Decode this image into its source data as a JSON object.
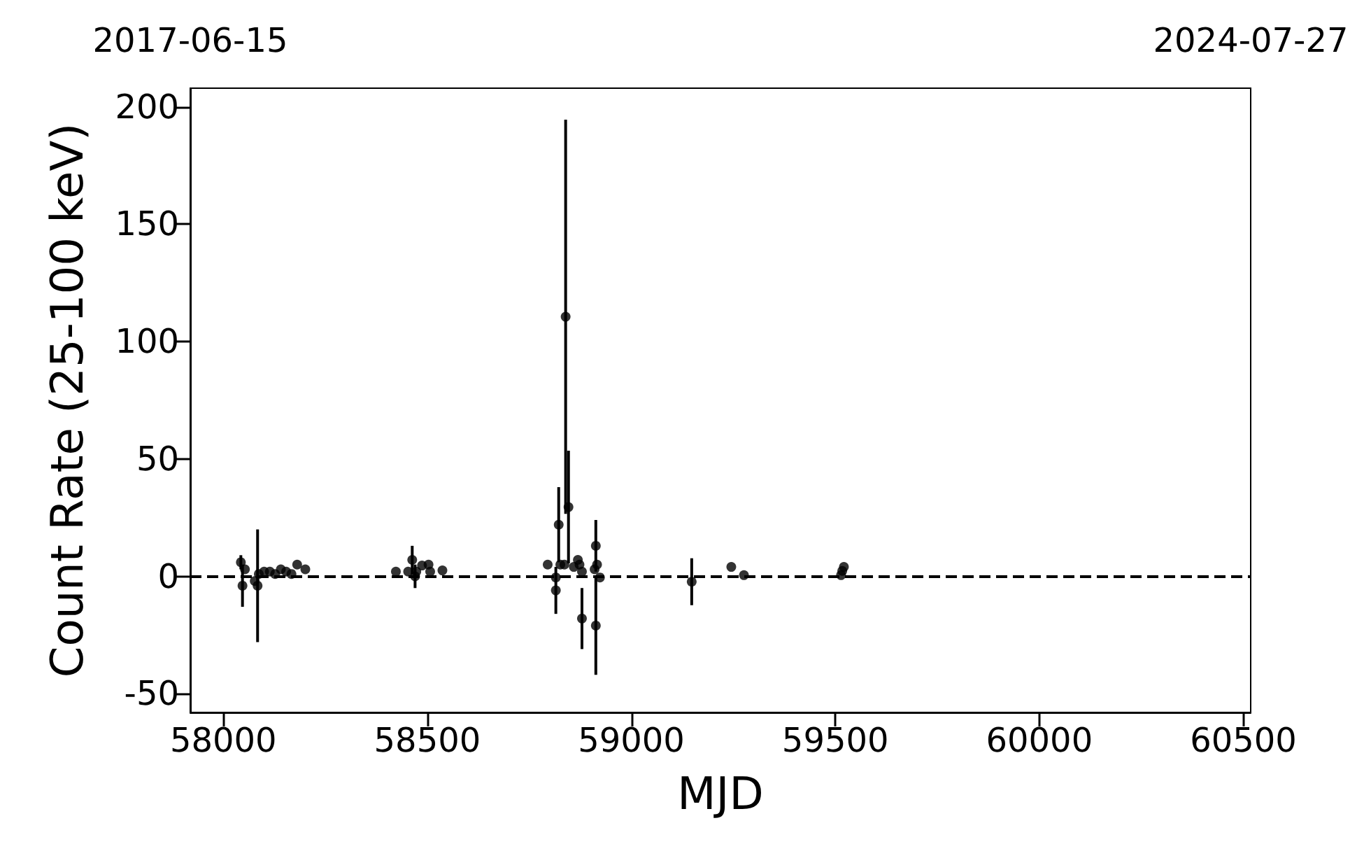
{
  "chart_data": {
    "type": "scatter",
    "xlabel": "MJD",
    "ylabel": "Count Rate (25-100 keV)",
    "color": "#000000",
    "marker": "circle",
    "x": [
      58043,
      58047,
      58053,
      58077,
      58084,
      58087,
      58100,
      58114,
      58127,
      58141,
      58154,
      58167,
      58181,
      58201,
      58423,
      58453,
      58463,
      58470,
      58473,
      58487,
      58503,
      58507,
      58537,
      58795,
      58815,
      58815,
      58822,
      58826,
      58836,
      58839,
      58846,
      58853,
      58859,
      58869,
      58873,
      58879,
      58879,
      58910,
      58913,
      58913,
      58916,
      58923,
      59148,
      59245,
      59276,
      59514,
      59517,
      59521
    ],
    "values": [
      6,
      -4,
      3,
      -2,
      -4,
      1,
      2,
      2,
      1,
      3,
      2,
      1,
      5,
      3,
      2,
      2,
      7,
      0,
      2,
      4.6,
      5,
      2,
      2.5,
      5,
      -0.5,
      -6,
      22,
      5,
      5,
      110.6,
      29.5,
      null,
      4,
      7,
      5,
      -18,
      2,
      3,
      13,
      -21,
      5,
      -0.5,
      -2.3,
      4,
      0.5,
      0.5,
      2.3,
      4
    ],
    "errors": [
      3,
      9,
      null,
      null,
      24,
      null,
      null,
      null,
      null,
      null,
      null,
      null,
      null,
      null,
      null,
      null,
      6,
      5,
      null,
      null,
      null,
      null,
      null,
      null,
      null,
      10,
      16,
      null,
      null,
      84,
      24,
      null,
      null,
      null,
      null,
      13,
      null,
      null,
      11,
      21,
      null,
      null,
      10,
      null,
      null,
      null,
      null,
      null
    ],
    "xlim": [
      57919,
      60518
    ],
    "xticks": [
      58000,
      58500,
      59000,
      59500,
      60000,
      60500
    ],
    "ylim": [
      -58,
      208
    ],
    "yticks": [
      -50,
      0,
      50,
      100,
      150,
      200
    ],
    "x2lim": [
      "2017-06-15",
      "2024-07-27"
    ],
    "x2ticks": [
      "2017-06-15",
      "2024-07-27"
    ],
    "ref_lines": [
      {
        "axis": "y",
        "value": 0,
        "label": null,
        "color": "#000000",
        "line_style": "dashed"
      }
    ],
    "grid": false
  }
}
